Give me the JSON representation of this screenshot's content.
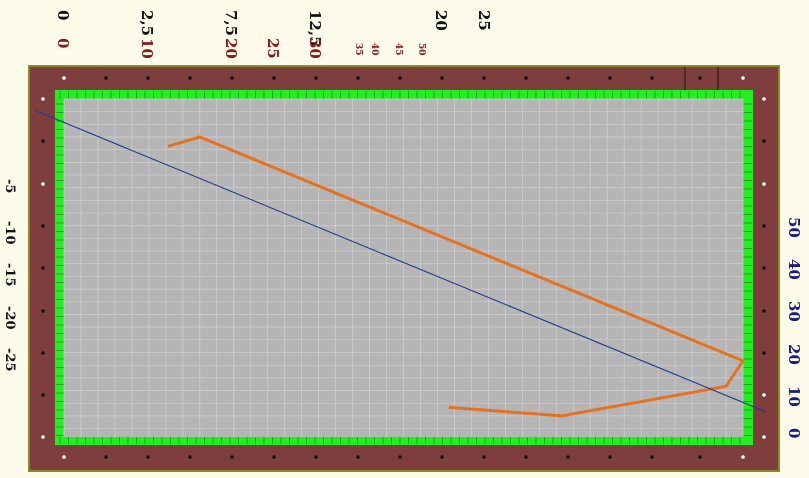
{
  "chart_data": {
    "type": "line",
    "title": "",
    "xlabel": "",
    "ylabel": "",
    "axes": {
      "top_black_ticks": [
        "0",
        "2,5",
        "7,5",
        "12,5",
        "20",
        "25"
      ],
      "top_red_ticks": [
        "0",
        "10",
        "20",
        "25",
        "30",
        "35",
        "40",
        "45",
        "50"
      ],
      "left_ticks": [
        "-5",
        "-10",
        "-15",
        "-20",
        "-25"
      ],
      "right_ticks": [
        "50",
        "40",
        "30",
        "20",
        "10",
        "0"
      ]
    },
    "series": [
      {
        "color": "#e37222",
        "values": [
          [
            9.2,
            5.6
          ],
          [
            12,
            4.5
          ],
          [
            60,
            31
          ],
          [
            58.5,
            34
          ],
          [
            44,
            37.5
          ],
          [
            34,
            36.5
          ]
        ]
      },
      {
        "color": "#1f3a93",
        "values": [
          [
            -2.5,
            1.4
          ],
          [
            62,
            37
          ]
        ]
      }
    ],
    "plot_xlim": [
      0,
      60
    ],
    "plot_ylim": [
      0,
      40
    ],
    "grid": true,
    "colors": {
      "background": "#fdfbe9",
      "frame": "#7e3e3e",
      "frame_border": "#8a8a2a",
      "inner_band": "#22ee22",
      "plot_area": "#b5b5b5",
      "grid_line": "#d0d0d0",
      "black_tick": "#111111",
      "red_tick": "#8b1a1a",
      "blue_tick": "#1a1a8b"
    }
  }
}
